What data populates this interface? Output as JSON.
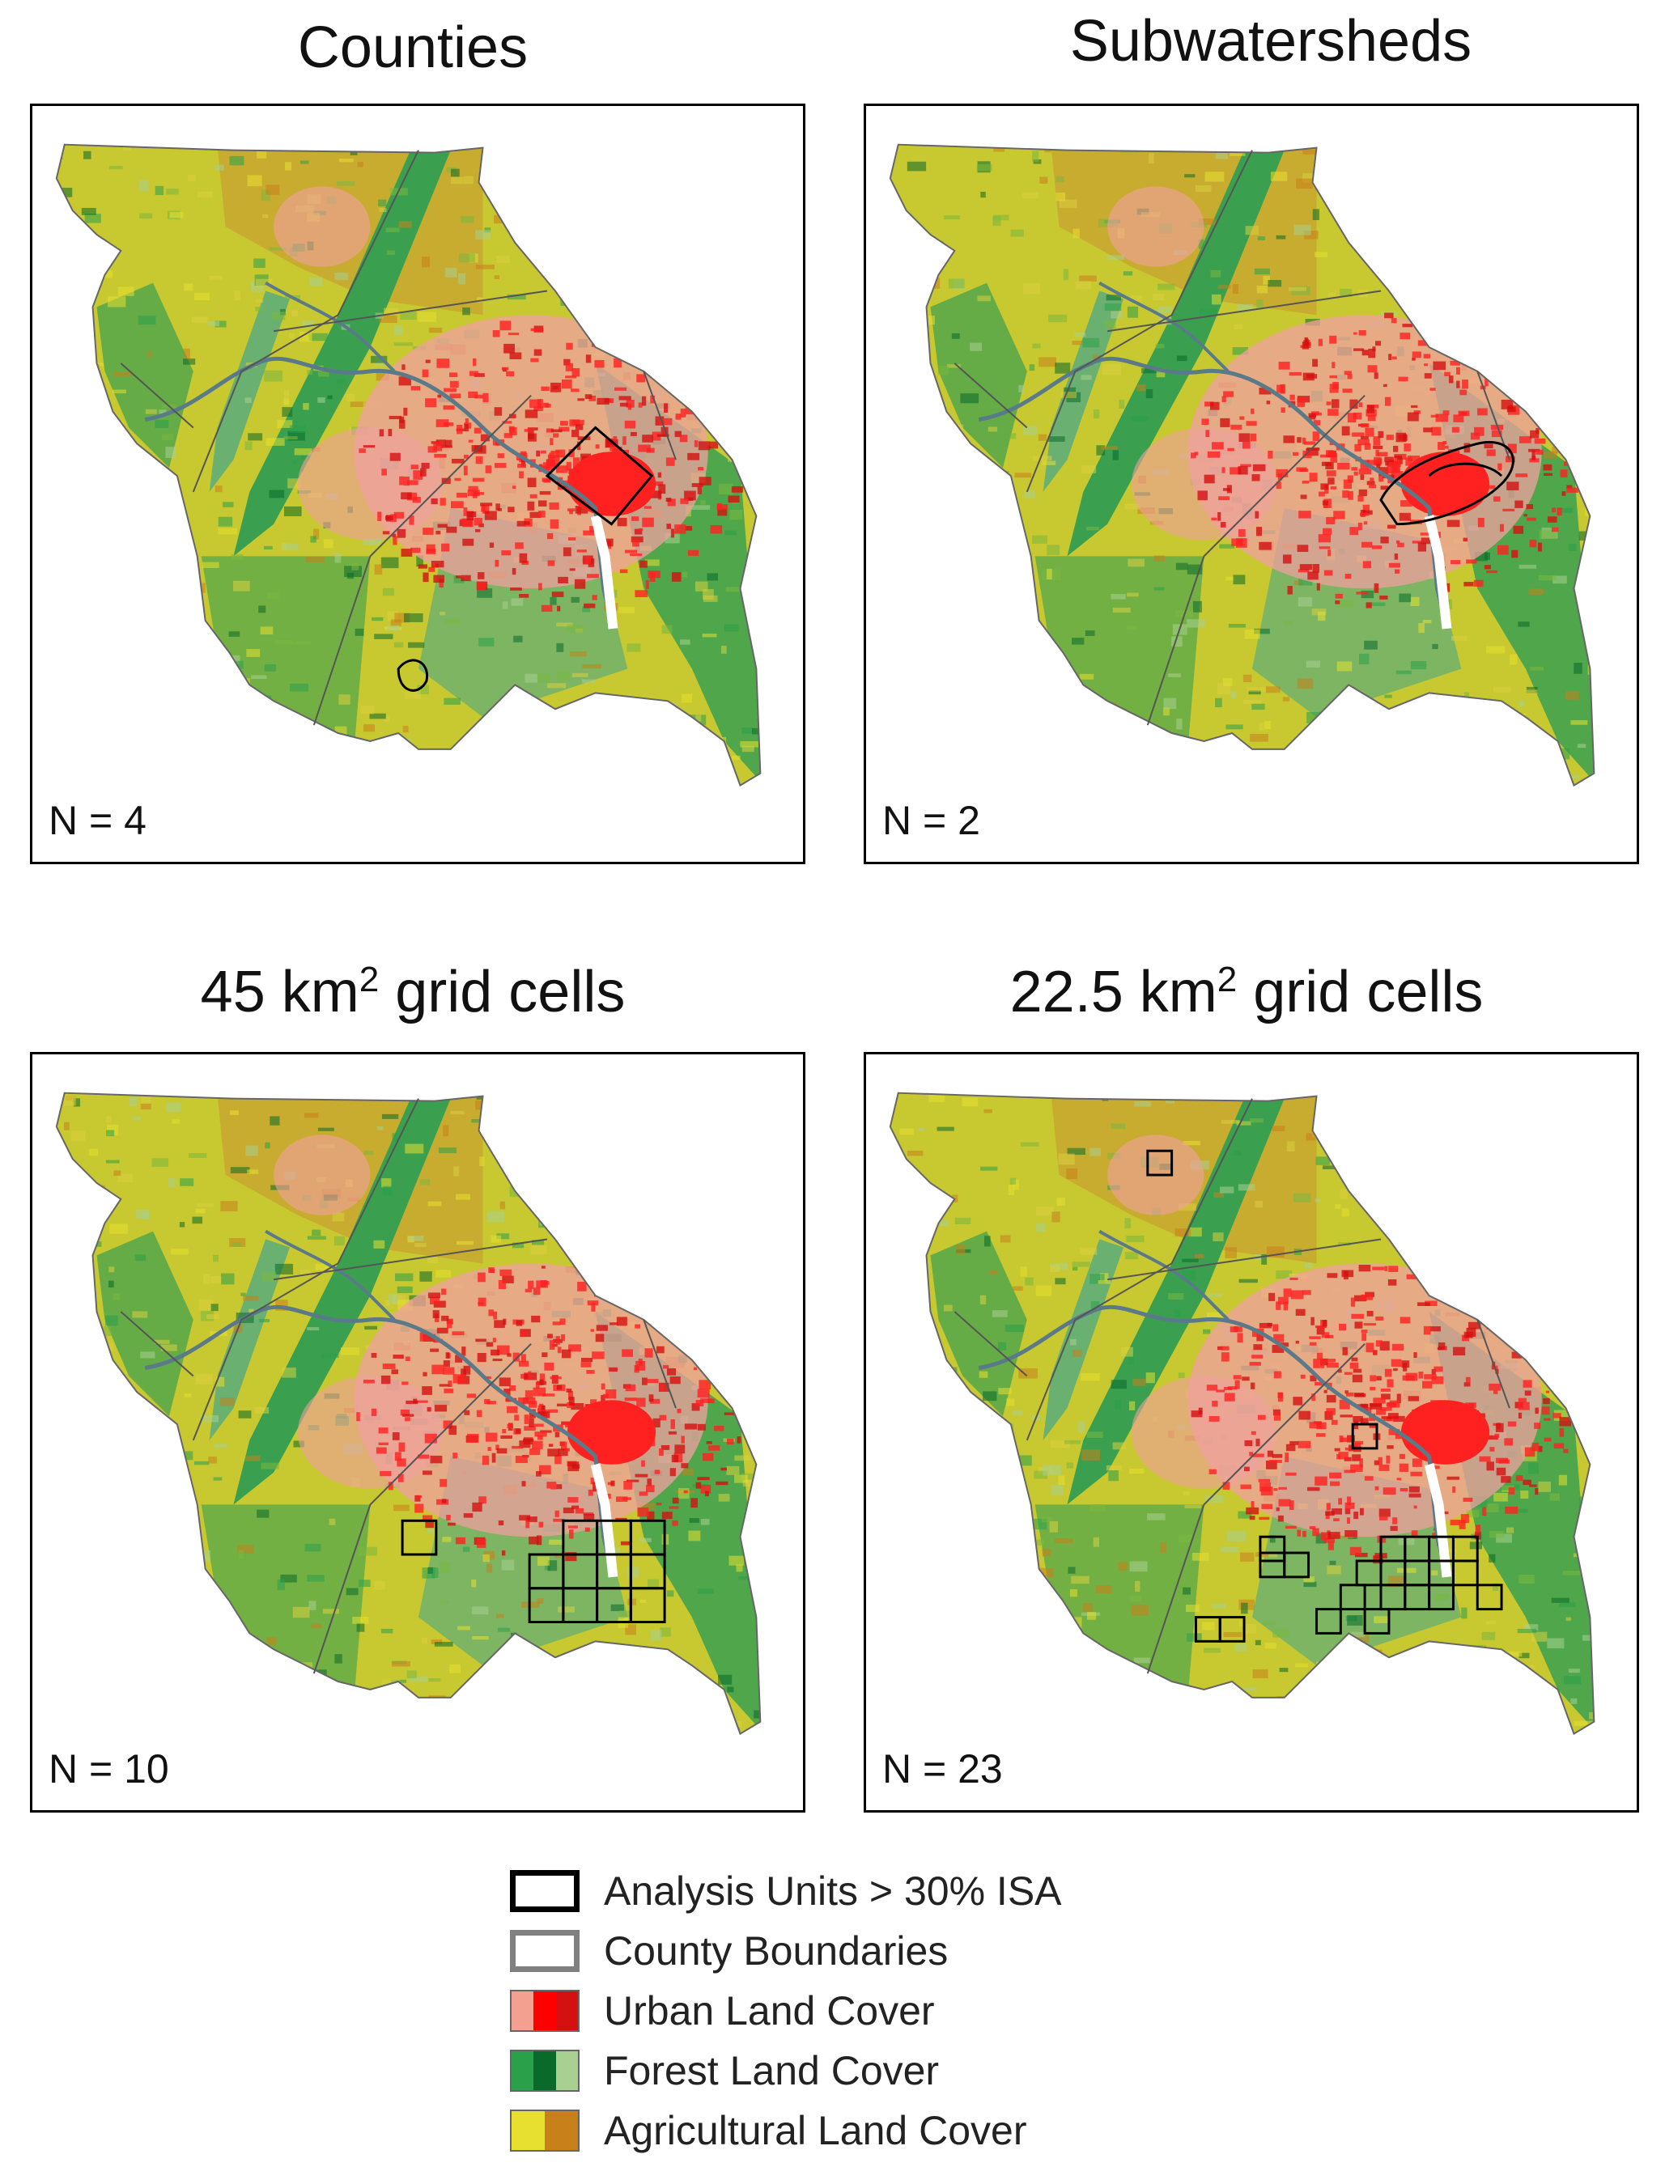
{
  "panels": [
    {
      "title": "Counties",
      "count": "N = 4"
    },
    {
      "title": "Subwatersheds",
      "count": "N = 2"
    },
    {
      "title_main": "45 km",
      "title_sup": "2",
      "title_rest": " grid cells",
      "count": "N = 10"
    },
    {
      "title_main": "22.5 km",
      "title_sup": "2",
      "title_rest": " grid cells",
      "count": "N = 23"
    }
  ],
  "legend": [
    {
      "label": "Analysis Units > 30% ISA",
      "stroke": "#000000"
    },
    {
      "label": "County Boundaries",
      "stroke": "#808080"
    },
    {
      "label": "Urban Land Cover",
      "colors": [
        "#f4a090",
        "#ff0000",
        "#d41010"
      ]
    },
    {
      "label": "Forest Land Cover",
      "colors": [
        "#2aa04a",
        "#0a6a2a",
        "#a8d090"
      ]
    },
    {
      "label": "Agricultural Land Cover",
      "colors": [
        "#e8e030",
        "#c8801a"
      ]
    }
  ],
  "colors": {
    "agriculture": "#c8c830",
    "forest": "#3aa050",
    "urban": "#ff2020",
    "urban_light": "#f0a0a0",
    "river": "#5a7a8a"
  }
}
